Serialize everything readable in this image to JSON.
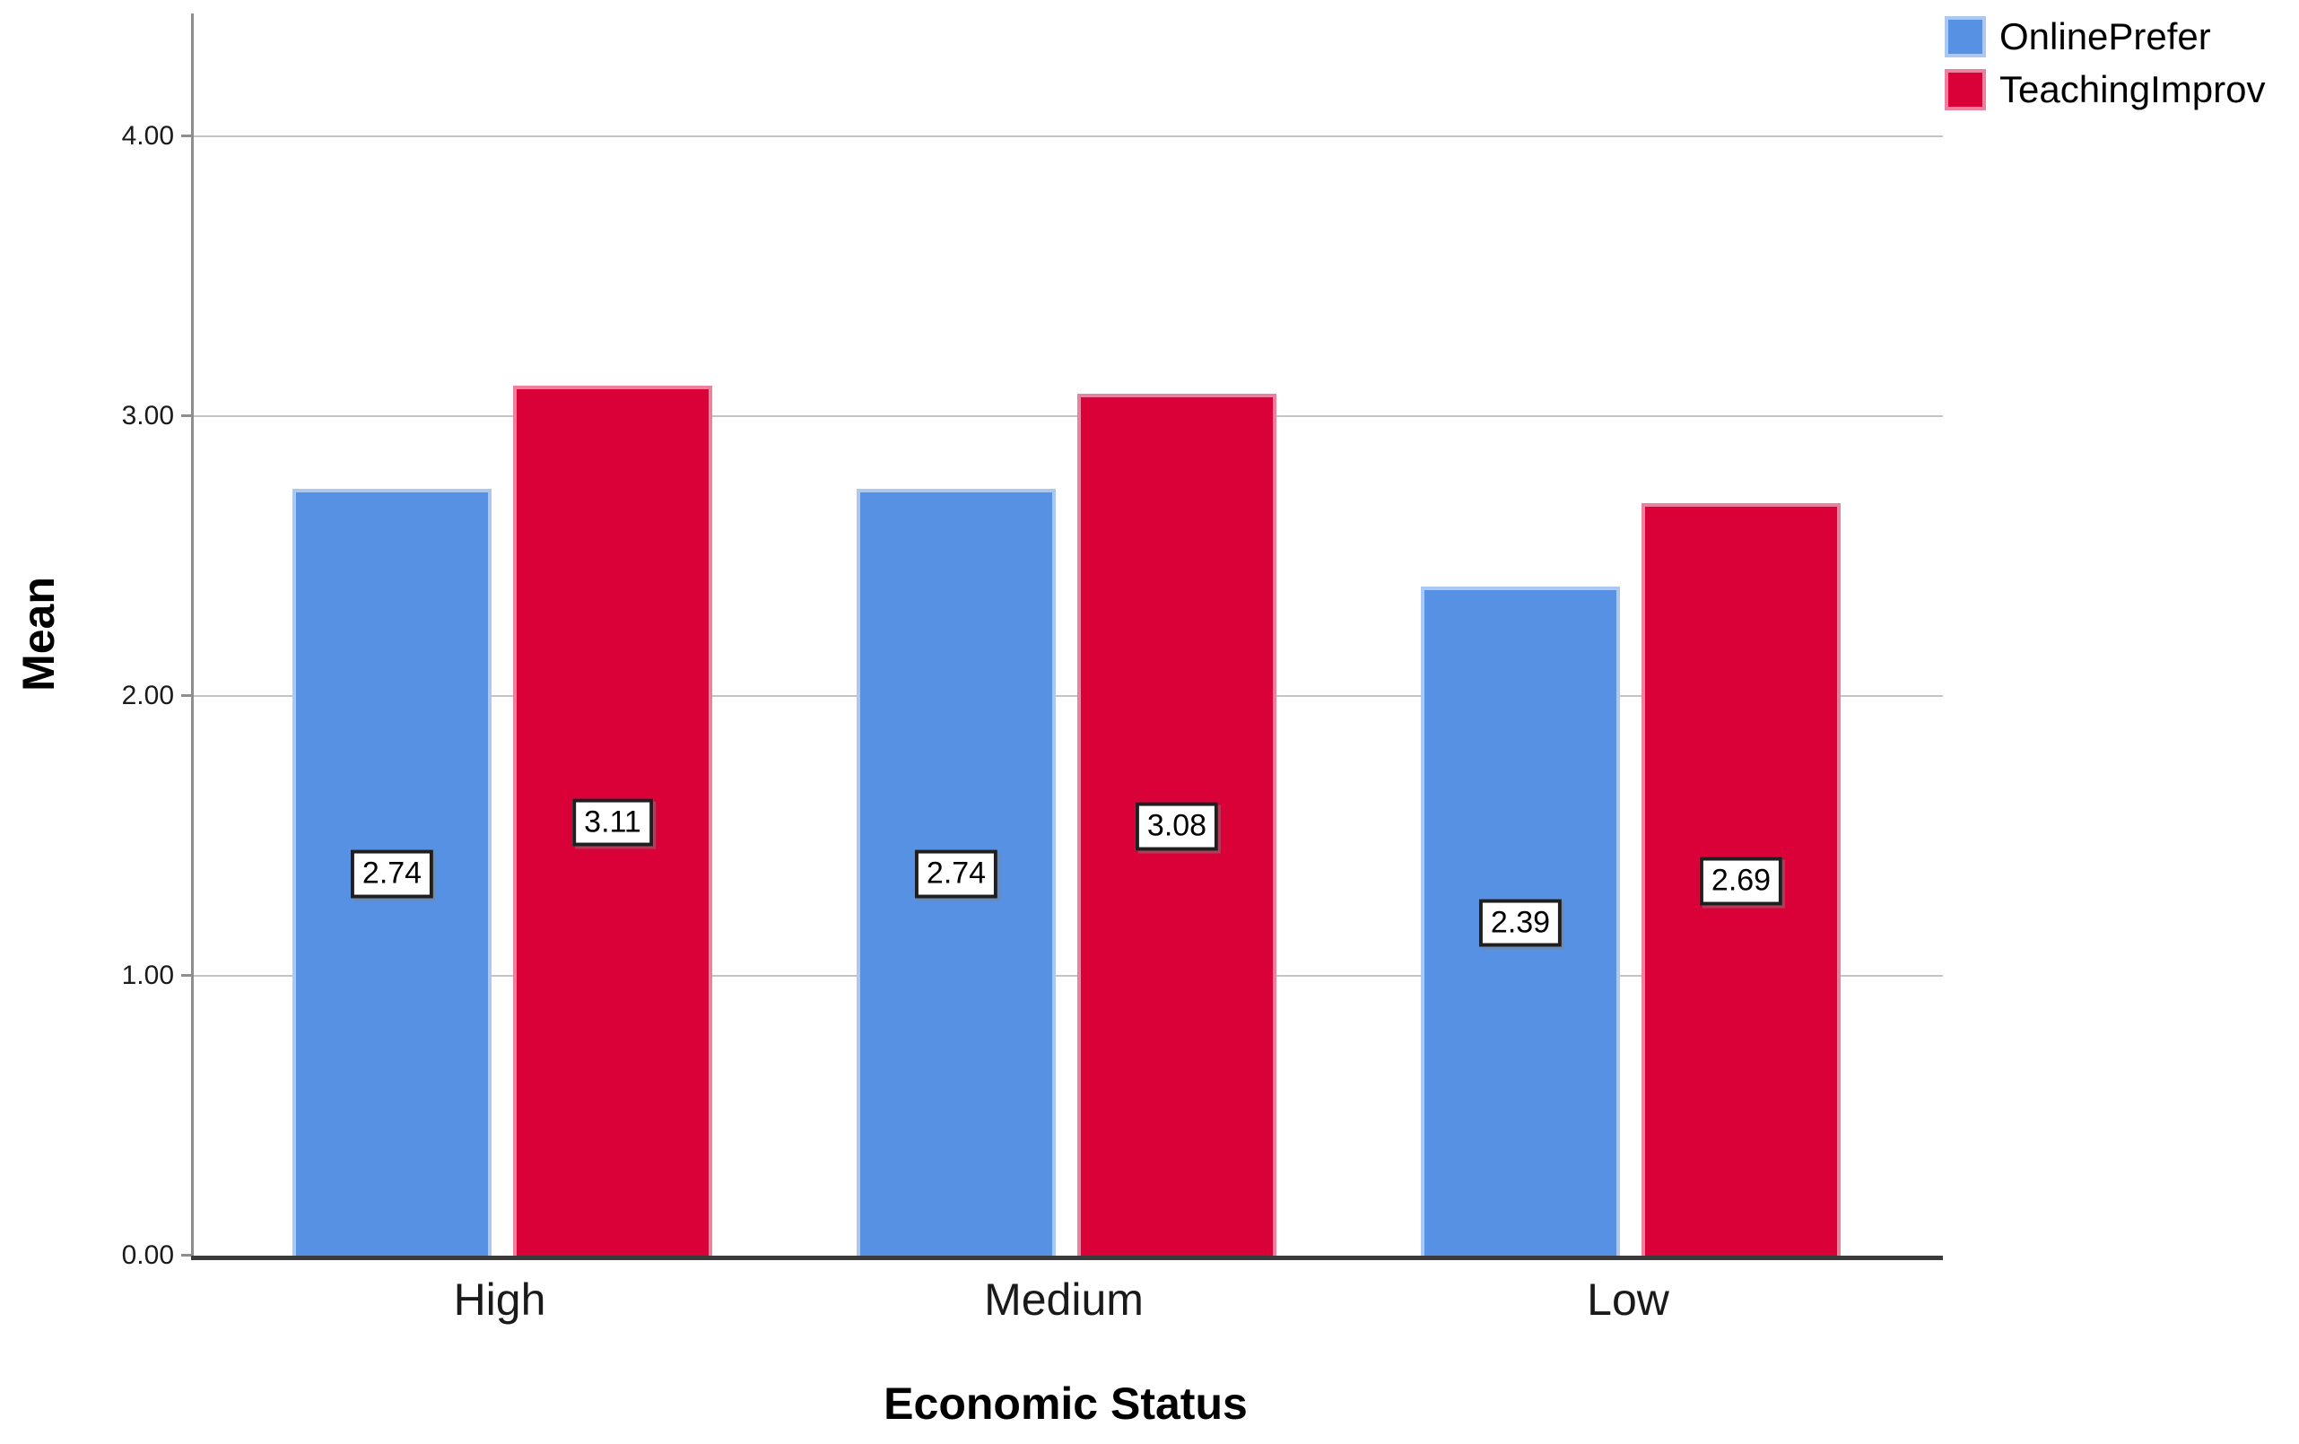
{
  "chart_data": {
    "type": "bar",
    "categories": [
      "High",
      "Medium",
      "Low"
    ],
    "series": [
      {
        "name": "OnlinePrefer",
        "color": "#5791E4",
        "values": [
          2.74,
          2.74,
          2.39
        ]
      },
      {
        "name": "TeachingImprov",
        "color": "#DA0038",
        "values": [
          3.11,
          3.08,
          2.69
        ]
      }
    ],
    "bar_value_labels": [
      [
        "2.74",
        "2.74",
        "2.39"
      ],
      [
        "3.11",
        "3.08",
        "2.69"
      ]
    ],
    "xlabel": "Economic Status",
    "ylabel": "Mean",
    "ylim": [
      0,
      4.44
    ],
    "yticks": [
      0,
      1,
      2,
      3,
      4
    ],
    "ytick_labels": [
      "0.00",
      "1.00",
      "2.00",
      "3.00",
      "4.00"
    ],
    "grid": "horizontal",
    "legend_position": "top-right",
    "colors": {
      "axis_line": "#3b3b3b",
      "y_axis_line": "#8e8e8e",
      "gridline": "#c4c4c4",
      "label_box_border": "#1f1f1f",
      "label_box_fill": "#ffffff"
    }
  }
}
